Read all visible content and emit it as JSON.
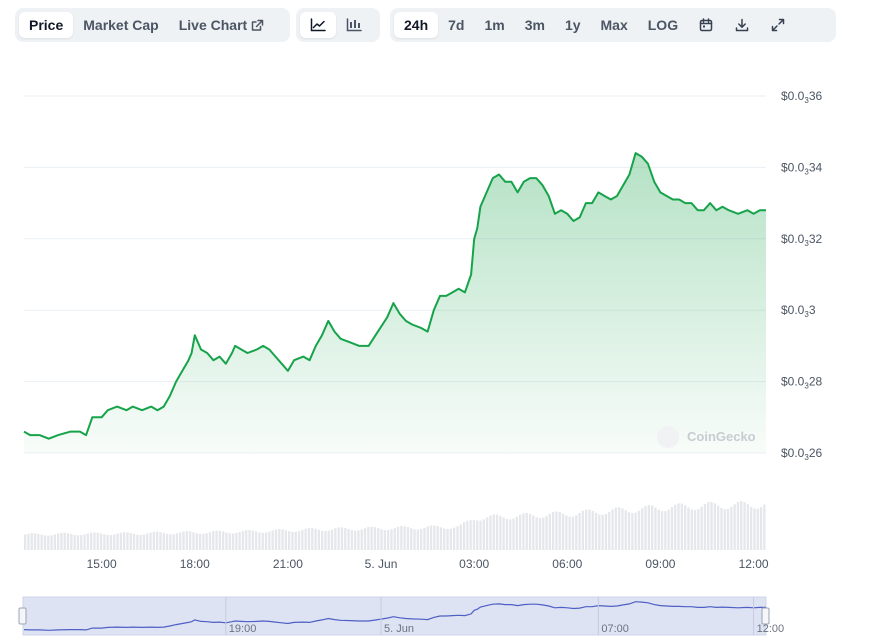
{
  "toolbar": {
    "tabs": [
      {
        "label": "Price",
        "active": true
      },
      {
        "label": "Market Cap",
        "active": false
      },
      {
        "label": "Live Chart",
        "active": false
      }
    ],
    "chart_types": [
      {
        "icon": "line-chart-icon",
        "active": true
      },
      {
        "icon": "candlestick-icon",
        "active": false
      }
    ],
    "ranges": [
      {
        "label": "24h",
        "active": true
      },
      {
        "label": "7d",
        "active": false
      },
      {
        "label": "1m",
        "active": false
      },
      {
        "label": "3m",
        "active": false
      },
      {
        "label": "1y",
        "active": false
      },
      {
        "label": "Max",
        "active": false
      },
      {
        "label": "LOG",
        "active": false
      }
    ],
    "actions": [
      "calendar-icon",
      "download-icon",
      "expand-icon"
    ]
  },
  "watermark": "CoinGecko",
  "colors": {
    "line": "#16a34a",
    "area_top": "#16a34a",
    "volume": "#e5e7eb",
    "grid": "#eceff3",
    "navigator_fill": "#dde3f3",
    "navigator_line": "#4f5fc4"
  },
  "chart_data": {
    "type": "area",
    "x_unit": "hours",
    "ylim": [
      2.55e-05,
      3.62e-05
    ],
    "y_ticks": [
      {
        "value": 3.6e-05,
        "prefix": "$0.0",
        "sub": "3",
        "suffix": "36"
      },
      {
        "value": 3.4e-05,
        "prefix": "$0.0",
        "sub": "3",
        "suffix": "34"
      },
      {
        "value": 3.2e-05,
        "prefix": "$0.0",
        "sub": "3",
        "suffix": "32"
      },
      {
        "value": 3e-05,
        "prefix": "$0.0",
        "sub": "3",
        "suffix": "3"
      },
      {
        "value": 2.8e-05,
        "prefix": "$0.0",
        "sub": "3",
        "suffix": "28"
      },
      {
        "value": 2.6e-05,
        "prefix": "$0.0",
        "sub": "3",
        "suffix": "26"
      }
    ],
    "x_ticks": [
      {
        "label": "15:00",
        "x": 15
      },
      {
        "label": "18:00",
        "x": 18
      },
      {
        "label": "21:00",
        "x": 21
      },
      {
        "label": "5. Jun",
        "x": 24
      },
      {
        "label": "03:00",
        "x": 27
      },
      {
        "label": "06:00",
        "x": 30
      },
      {
        "label": "09:00",
        "x": 33
      },
      {
        "label": "12:00",
        "x": 36
      }
    ],
    "xlim": [
      12.5,
      36.4
    ],
    "series": [
      {
        "values": [
          [
            12.5,
            2.66e-05
          ],
          [
            12.7,
            2.65e-05
          ],
          [
            13.0,
            2.65e-05
          ],
          [
            13.3,
            2.64e-05
          ],
          [
            13.6,
            2.65e-05
          ],
          [
            14.0,
            2.66e-05
          ],
          [
            14.3,
            2.66e-05
          ],
          [
            14.5,
            2.65e-05
          ],
          [
            14.7,
            2.7e-05
          ],
          [
            15.0,
            2.7e-05
          ],
          [
            15.2,
            2.72e-05
          ],
          [
            15.5,
            2.73e-05
          ],
          [
            15.8,
            2.72e-05
          ],
          [
            16.0,
            2.73e-05
          ],
          [
            16.3,
            2.72e-05
          ],
          [
            16.6,
            2.73e-05
          ],
          [
            16.8,
            2.72e-05
          ],
          [
            17.0,
            2.73e-05
          ],
          [
            17.2,
            2.76e-05
          ],
          [
            17.4,
            2.8e-05
          ],
          [
            17.6,
            2.83e-05
          ],
          [
            17.8,
            2.86e-05
          ],
          [
            17.9,
            2.88e-05
          ],
          [
            18.0,
            2.93e-05
          ],
          [
            18.2,
            2.89e-05
          ],
          [
            18.4,
            2.88e-05
          ],
          [
            18.6,
            2.86e-05
          ],
          [
            18.8,
            2.87e-05
          ],
          [
            19.0,
            2.85e-05
          ],
          [
            19.2,
            2.88e-05
          ],
          [
            19.3,
            2.9e-05
          ],
          [
            19.5,
            2.89e-05
          ],
          [
            19.7,
            2.88e-05
          ],
          [
            20.0,
            2.89e-05
          ],
          [
            20.2,
            2.9e-05
          ],
          [
            20.4,
            2.89e-05
          ],
          [
            20.6,
            2.87e-05
          ],
          [
            20.8,
            2.85e-05
          ],
          [
            21.0,
            2.83e-05
          ],
          [
            21.2,
            2.86e-05
          ],
          [
            21.5,
            2.87e-05
          ],
          [
            21.7,
            2.86e-05
          ],
          [
            21.9,
            2.9e-05
          ],
          [
            22.1,
            2.93e-05
          ],
          [
            22.3,
            2.97e-05
          ],
          [
            22.5,
            2.94e-05
          ],
          [
            22.7,
            2.92e-05
          ],
          [
            23.0,
            2.91e-05
          ],
          [
            23.3,
            2.9e-05
          ],
          [
            23.6,
            2.9e-05
          ],
          [
            23.9,
            2.94e-05
          ],
          [
            24.2,
            2.98e-05
          ],
          [
            24.4,
            3.02e-05
          ],
          [
            24.6,
            2.99e-05
          ],
          [
            24.8,
            2.97e-05
          ],
          [
            25.0,
            2.96e-05
          ],
          [
            25.3,
            2.95e-05
          ],
          [
            25.5,
            2.94e-05
          ],
          [
            25.7,
            3e-05
          ],
          [
            25.9,
            3.04e-05
          ],
          [
            26.1,
            3.04e-05
          ],
          [
            26.3,
            3.05e-05
          ],
          [
            26.5,
            3.06e-05
          ],
          [
            26.7,
            3.05e-05
          ],
          [
            26.9,
            3.1e-05
          ],
          [
            27.0,
            3.2e-05
          ],
          [
            27.1,
            3.23e-05
          ],
          [
            27.2,
            3.29e-05
          ],
          [
            27.4,
            3.33e-05
          ],
          [
            27.6,
            3.37e-05
          ],
          [
            27.8,
            3.38e-05
          ],
          [
            28.0,
            3.36e-05
          ],
          [
            28.2,
            3.36e-05
          ],
          [
            28.4,
            3.33e-05
          ],
          [
            28.6,
            3.36e-05
          ],
          [
            28.8,
            3.37e-05
          ],
          [
            29.0,
            3.37e-05
          ],
          [
            29.2,
            3.35e-05
          ],
          [
            29.4,
            3.32e-05
          ],
          [
            29.6,
            3.27e-05
          ],
          [
            29.8,
            3.28e-05
          ],
          [
            30.0,
            3.27e-05
          ],
          [
            30.2,
            3.25e-05
          ],
          [
            30.4,
            3.26e-05
          ],
          [
            30.6,
            3.3e-05
          ],
          [
            30.8,
            3.3e-05
          ],
          [
            31.0,
            3.33e-05
          ],
          [
            31.2,
            3.32e-05
          ],
          [
            31.4,
            3.31e-05
          ],
          [
            31.6,
            3.32e-05
          ],
          [
            31.8,
            3.35e-05
          ],
          [
            32.0,
            3.38e-05
          ],
          [
            32.2,
            3.44e-05
          ],
          [
            32.4,
            3.43e-05
          ],
          [
            32.6,
            3.41e-05
          ],
          [
            32.8,
            3.36e-05
          ],
          [
            33.0,
            3.33e-05
          ],
          [
            33.2,
            3.32e-05
          ],
          [
            33.4,
            3.31e-05
          ],
          [
            33.6,
            3.31e-05
          ],
          [
            33.8,
            3.3e-05
          ],
          [
            34.0,
            3.3e-05
          ],
          [
            34.2,
            3.28e-05
          ],
          [
            34.4,
            3.28e-05
          ],
          [
            34.6,
            3.3e-05
          ],
          [
            34.8,
            3.28e-05
          ],
          [
            35.0,
            3.29e-05
          ],
          [
            35.2,
            3.28e-05
          ],
          [
            35.5,
            3.27e-05
          ],
          [
            35.8,
            3.28e-05
          ],
          [
            36.0,
            3.27e-05
          ],
          [
            36.2,
            3.28e-05
          ],
          [
            36.4,
            3.28e-05
          ]
        ]
      }
    ],
    "volume": {
      "values": [
        [
          12.5,
          0.3
        ],
        [
          14.0,
          0.31
        ],
        [
          16.0,
          0.32
        ],
        [
          18.0,
          0.34
        ],
        [
          20.0,
          0.36
        ],
        [
          22.0,
          0.4
        ],
        [
          24.0,
          0.42
        ],
        [
          26.5,
          0.45
        ],
        [
          27.0,
          0.62
        ],
        [
          28.5,
          0.66
        ],
        [
          30.0,
          0.7
        ],
        [
          31.5,
          0.76
        ],
        [
          33.0,
          0.82
        ],
        [
          34.5,
          0.86
        ],
        [
          36.4,
          0.88
        ]
      ]
    },
    "navigator": {
      "ticks": [
        {
          "label": "19:00",
          "x": 19
        },
        {
          "label": "5. Jun",
          "x": 24
        },
        {
          "label": "07:00",
          "x": 31
        },
        {
          "label": "12:00",
          "x": 36
        }
      ]
    }
  }
}
